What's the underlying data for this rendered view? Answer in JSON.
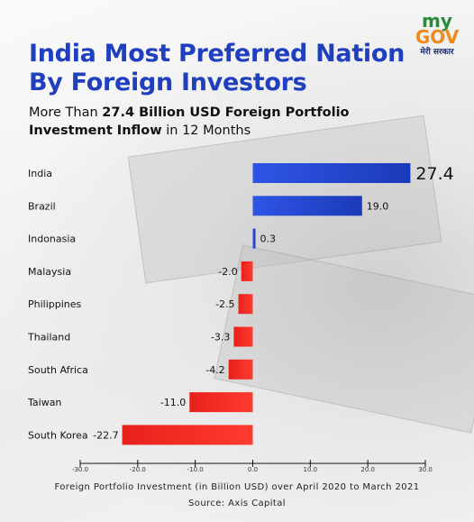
{
  "header": {
    "logo_top": "my",
    "logo_gov": "GOV",
    "logo_hindi": "मेरी सरकार",
    "title": "India Most Preferred Nation By Foreign Investors",
    "subtitle_pre": "More Than ",
    "subtitle_bold": "27.4 Billion USD Foreign Portfolio Investment Inflow",
    "subtitle_post": " in 12 Months"
  },
  "footer": {
    "note": "Foreign Portfolio Investment (in Billion USD) over April 2020 to March 2021",
    "source": "Source: Axis Capital"
  },
  "colors": {
    "positive": "#1a3ab8",
    "negative": "#e8201c",
    "title": "#1f3fbf"
  },
  "chart_data": {
    "type": "bar",
    "orientation": "horizontal",
    "categories": [
      "India",
      "Brazil",
      "Indonasia",
      "Malaysia",
      "Philippines",
      "Thailand",
      "South Africa",
      "Taiwan",
      "South Korea"
    ],
    "values": [
      27.4,
      19.0,
      0.3,
      -2.0,
      -2.5,
      -3.3,
      -4.2,
      -11.0,
      -22.7
    ],
    "value_labels": [
      "27.4",
      "19.0",
      "0.3",
      "-2.0",
      "-2.5",
      "-3.3",
      "-4.2",
      "-11.0",
      "-22.7"
    ],
    "xlim": [
      -30,
      30
    ],
    "xticks": [
      "-30.0",
      "-20.0",
      "-10.0",
      "0.0",
      "10.0",
      "20.0",
      "30.0"
    ],
    "grid": false
  }
}
